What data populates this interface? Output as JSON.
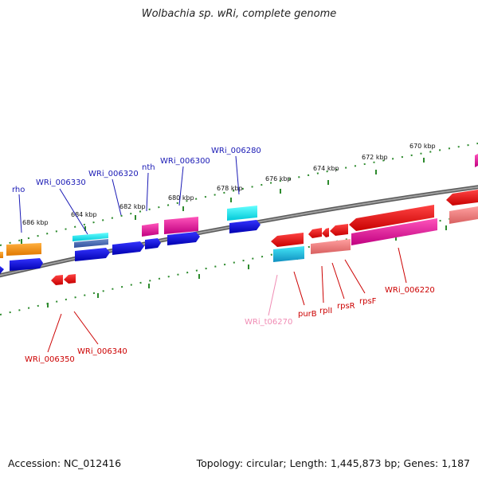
{
  "title": "Wolbachia sp. wRi, complete genome",
  "accession": "Accession: NC_012416",
  "stats": "Topology: circular; Length: 1,445,873 bp; Genes: 1,187",
  "colors": {
    "tick": "#2e8b2e",
    "backbone": "#7a7a7a",
    "label_blue": "#1a1ab5",
    "label_red": "#cc0000",
    "label_pink": "#f08cb4"
  },
  "scale_ticks": [
    "686 kbp",
    "684 kbp",
    "682 kbp",
    "680 kbp",
    "678 kbp",
    "676 kbp",
    "674 kbp",
    "672 kbp",
    "670 kbp"
  ],
  "gene_labels_top": [
    "rho",
    "WRi_006330",
    "WRi_006320",
    "nth",
    "WRi_006300",
    "WRi_006280"
  ],
  "gene_labels_bottom": [
    "WRi_006350",
    "WRi_006340",
    "WRi_t06270",
    "purB",
    "rplI",
    "rpsR",
    "rpsF",
    "WRi_006220"
  ]
}
